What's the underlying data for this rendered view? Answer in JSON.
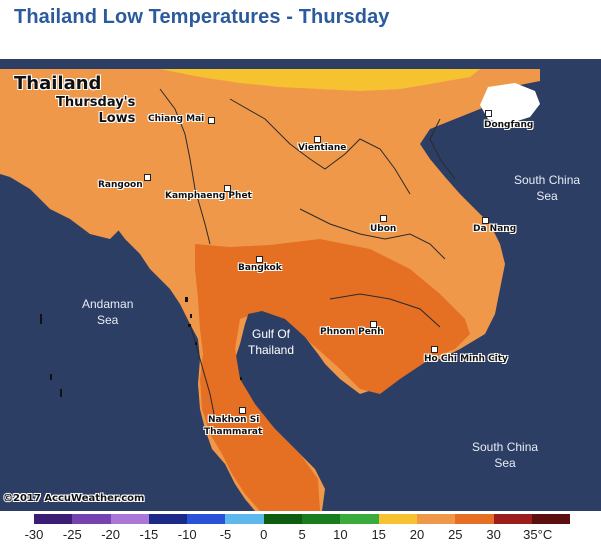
{
  "title": "Thailand Low Temperatures - Thursday",
  "map": {
    "country_label": "Thailand",
    "subtitle_line1": "Thursday's",
    "subtitle_line2": "Lows",
    "copyright": "©2017 AccuWeather.com",
    "colors": {
      "sea": "#2d3e64",
      "band_15_20": "#f7c230",
      "band_20_25": "#f0984a",
      "band_25_30": "#e56f23",
      "land_outside": "#ffffff"
    },
    "cities": [
      {
        "name": "Chiang Mai"
      },
      {
        "name": "Dongfang"
      },
      {
        "name": "Vientiane"
      },
      {
        "name": "Rangoon"
      },
      {
        "name": "Kamphaeng Phet"
      },
      {
        "name": "Ubon"
      },
      {
        "name": "Da Nang"
      },
      {
        "name": "Bangkok"
      },
      {
        "name": "Phnom Penh"
      },
      {
        "name": "Ho Chi Minh City"
      },
      {
        "name": "Nakhon Si"
      },
      {
        "name": "Thammarat"
      }
    ],
    "seas": {
      "south_china_sea_1": "South China",
      "south_china_sea_1b": "Sea",
      "andaman": "Andaman",
      "andaman_b": "Sea",
      "gulf": "Gulf Of",
      "gulf_b": "Thailand",
      "south_china_sea_2": "South China",
      "south_china_sea_2b": "Sea"
    }
  },
  "legend": {
    "unit": "°C",
    "swatches": [
      "#3b1e73",
      "#7443b0",
      "#a877d8",
      "#1b2a86",
      "#2952d9",
      "#5fb8ec",
      "#0d5c10",
      "#177d1e",
      "#3aac3e",
      "#f7c230",
      "#f0984a",
      "#e56f23",
      "#9c1e1c",
      "#5d0e0e"
    ],
    "ticks": [
      "-30",
      "-25",
      "-20",
      "-15",
      "-10",
      "-5",
      "0",
      "5",
      "10",
      "15",
      "20",
      "25",
      "30",
      "35°C"
    ]
  }
}
